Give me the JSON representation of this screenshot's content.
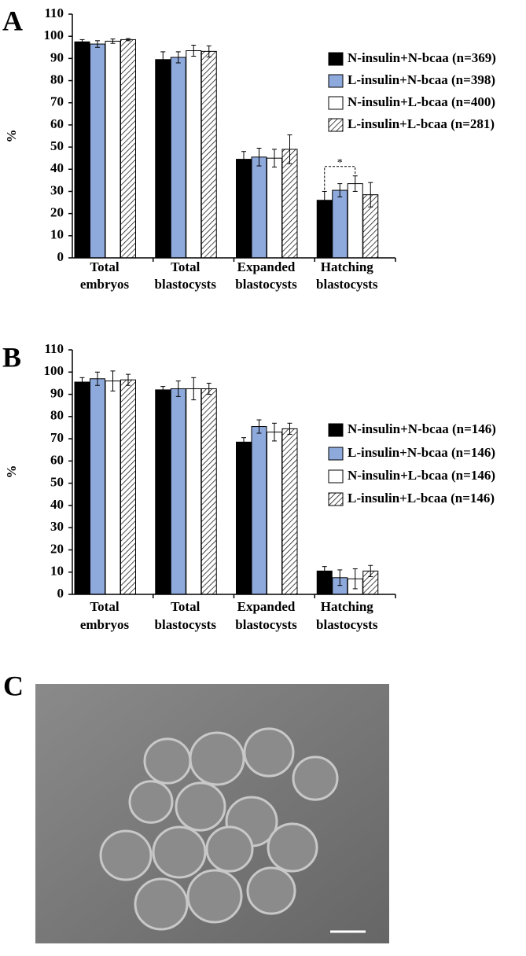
{
  "chart_data": [
    {
      "type": "bar",
      "panel_label": "A",
      "ylabel": "%",
      "categories": [
        [
          "Total",
          "embryos"
        ],
        [
          "Total",
          "blastocysts"
        ],
        [
          "Expanded",
          "blastocysts"
        ],
        [
          "Hatching",
          "blastocysts"
        ]
      ],
      "series": [
        {
          "name": "N-insulin+N-bcaa (n=369)",
          "color": "#000000",
          "values": [
            97.5,
            89.5,
            44.5,
            26
          ],
          "errors": [
            1,
            3.5,
            3.5,
            4
          ]
        },
        {
          "name": "L-insulin+N-bcaa (n=398)",
          "color": "#8eaadc",
          "values": [
            96.5,
            90.5,
            45.5,
            30.5
          ],
          "errors": [
            1.5,
            2.5,
            4,
            3
          ]
        },
        {
          "name": "N-insulin+L-bcaa (n=400)",
          "color": "#ffffff",
          "values": [
            97.8,
            93.5,
            45,
            33.5
          ],
          "errors": [
            1,
            2.5,
            4,
            3.5
          ]
        },
        {
          "name": "L-insulin+L-bcaa (n=281)",
          "color": "#ffffff",
          "hatch": true,
          "values": [
            98.5,
            93.2,
            49,
            28.5
          ],
          "errors": [
            0.5,
            2.5,
            6.5,
            5.5
          ]
        }
      ],
      "annotation": "*",
      "ylim": [
        0,
        110
      ],
      "yticks": [
        0,
        10,
        20,
        30,
        40,
        50,
        60,
        70,
        80,
        90,
        100,
        110
      ]
    },
    {
      "type": "bar",
      "panel_label": "B",
      "ylabel": "%",
      "categories": [
        [
          "Total",
          "embryos"
        ],
        [
          "Total",
          "blastocysts"
        ],
        [
          "Expanded",
          "blastocysts"
        ],
        [
          "Hatching",
          "blastocysts"
        ]
      ],
      "series": [
        {
          "name": "N-insulin+N-bcaa (n=146)",
          "color": "#000000",
          "values": [
            95.5,
            92,
            68.5,
            10.5
          ],
          "errors": [
            2,
            1.5,
            2,
            2
          ]
        },
        {
          "name": "L-insulin+N-bcaa (n=146)",
          "color": "#8eaadc",
          "values": [
            97,
            92.5,
            75.5,
            7.5
          ],
          "errors": [
            3,
            3.5,
            3,
            3.5
          ]
        },
        {
          "name": "N-insulin+L-bcaa (n=146)",
          "color": "#ffffff",
          "values": [
            96,
            92.5,
            73,
            7
          ],
          "errors": [
            4.5,
            5,
            4,
            4.5
          ]
        },
        {
          "name": "L-insulin+L-bcaa (n=146)",
          "color": "#ffffff",
          "hatch": true,
          "values": [
            96.5,
            92.5,
            74.5,
            10.5
          ],
          "errors": [
            2.5,
            2.5,
            2.5,
            2.5
          ]
        }
      ],
      "ylim": [
        0,
        110
      ],
      "yticks": [
        0,
        10,
        20,
        30,
        40,
        50,
        60,
        70,
        80,
        90,
        100,
        110
      ]
    }
  ],
  "image_panel": {
    "label": "C"
  }
}
